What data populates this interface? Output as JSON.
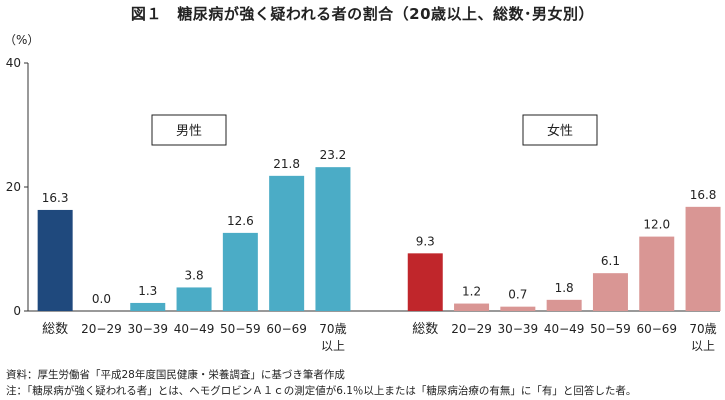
{
  "figure_title": "図１　糖尿病が強く疑われる者の割合（20歳以上、総数･男女別）",
  "notes": {
    "source": "資料：厚生労働省「平成28年度国民健康・栄養調査」に基づき筆者作成",
    "footnote": "注：「糖尿病が強く疑われる者」とは、ヘモグロビンＡ１ｃの測定値が6.1％以上または「糖尿病治療の有無」に「有」と回答した者。"
  },
  "colors": {
    "male_total": "#1f497d",
    "male_age": "#4bacc6",
    "female_total": "#c0262b",
    "female_age": "#d99694",
    "axis": "#333333"
  },
  "chart_data": {
    "type": "bar",
    "title": "図１　糖尿病が強く疑われる者の割合（20歳以上、総数･男女別）",
    "ylabel": "（%）",
    "ylim": [
      0,
      40
    ],
    "yticks": [
      0,
      20,
      40
    ],
    "grid": false,
    "groups": [
      {
        "name": "男性",
        "categories": [
          "総数",
          "20−29",
          "30−39",
          "40−49",
          "50−59",
          "60−69",
          "70歳\n以上"
        ],
        "values": [
          16.3,
          0.0,
          1.3,
          3.8,
          12.6,
          21.8,
          23.2
        ],
        "value_labels": [
          "16.3",
          "0.0",
          "1.3",
          "3.8",
          "12.6",
          "21.8",
          "23.2"
        ],
        "colors": [
          "#1f497d",
          "#4bacc6",
          "#4bacc6",
          "#4bacc6",
          "#4bacc6",
          "#4bacc6",
          "#4bacc6"
        ]
      },
      {
        "name": "女性",
        "categories": [
          "総数",
          "20−29",
          "30−39",
          "40−49",
          "50−59",
          "60−69",
          "70歳\n以上"
        ],
        "values": [
          9.3,
          1.2,
          0.7,
          1.8,
          6.1,
          12.0,
          16.8
        ],
        "value_labels": [
          "9.3",
          "1.2",
          "0.7",
          "1.8",
          "6.1",
          "12.0",
          "16.8"
        ],
        "colors": [
          "#c0262b",
          "#d99694",
          "#d99694",
          "#d99694",
          "#d99694",
          "#d99694",
          "#d99694"
        ]
      }
    ]
  }
}
